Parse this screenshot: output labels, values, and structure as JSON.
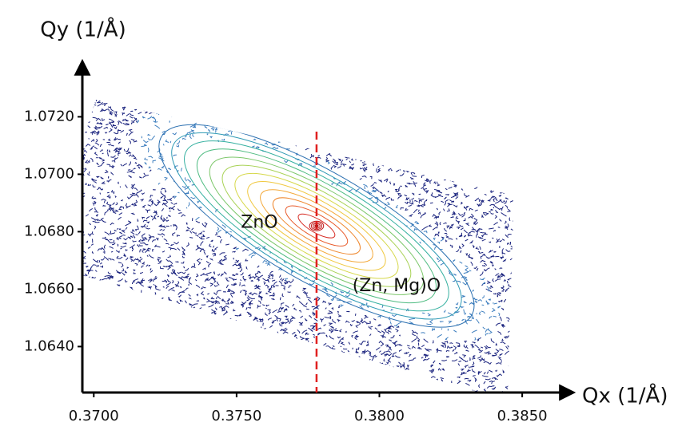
{
  "chart_data": {
    "type": "contour",
    "x_label": "Qx (1/Å)",
    "y_label": "Qy (1/Å)",
    "xlim": [
      0.3696,
      0.3869
    ],
    "ylim": [
      1.0624,
      1.0739
    ],
    "xticks": [
      {
        "value": 0.37,
        "label": "0.3700"
      },
      {
        "value": 0.375,
        "label": "0.3750"
      },
      {
        "value": 0.38,
        "label": "0.3800"
      },
      {
        "value": 0.385,
        "label": "0.3850"
      }
    ],
    "yticks": [
      {
        "value": 1.064,
        "label": "1.0640"
      },
      {
        "value": 1.066,
        "label": "1.0660"
      },
      {
        "value": 1.068,
        "label": "1.0680"
      },
      {
        "value": 1.07,
        "label": "1.0700"
      },
      {
        "value": 1.072,
        "label": "1.0720"
      }
    ],
    "peak": {
      "x": 0.3778,
      "y": 1.0682
    },
    "reference_line": {
      "x": 0.3778,
      "color": "#e02020"
    },
    "annotations": [
      {
        "text": "ZnO",
        "x": 0.3758,
        "y": 1.0683
      },
      {
        "text": "(Zn, Mg)O",
        "x": 0.3806,
        "y": 1.0661
      }
    ]
  }
}
